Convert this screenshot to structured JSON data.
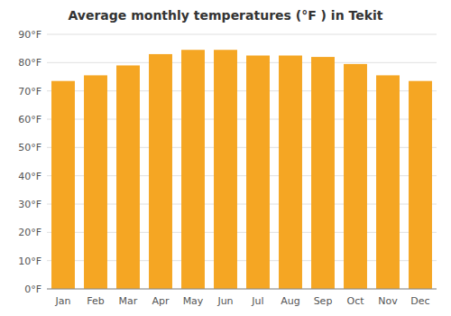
{
  "chart_data": {
    "type": "bar",
    "title": "Average monthly temperatures (°F ) in Tekit",
    "categories": [
      "Jan",
      "Feb",
      "Mar",
      "Apr",
      "May",
      "Jun",
      "Jul",
      "Aug",
      "Sep",
      "Oct",
      "Nov",
      "Dec"
    ],
    "values": [
      73.5,
      75.5,
      79.0,
      83.0,
      84.5,
      84.5,
      82.5,
      82.5,
      82.0,
      79.5,
      75.5,
      73.5
    ],
    "color": "#F5A623",
    "ylim": [
      0,
      90
    ],
    "yticks": [
      {
        "value": 0,
        "label": "0°F"
      },
      {
        "value": 10,
        "label": "10°F"
      },
      {
        "value": 20,
        "label": "20°F"
      },
      {
        "value": 30,
        "label": "30°F"
      },
      {
        "value": 40,
        "label": "40°F"
      },
      {
        "value": 50,
        "label": "50°F"
      },
      {
        "value": 60,
        "label": "60°F"
      },
      {
        "value": 70,
        "label": "70°F"
      },
      {
        "value": 80,
        "label": "80°F"
      },
      {
        "value": 90,
        "label": "90°F"
      }
    ],
    "grid": true
  }
}
